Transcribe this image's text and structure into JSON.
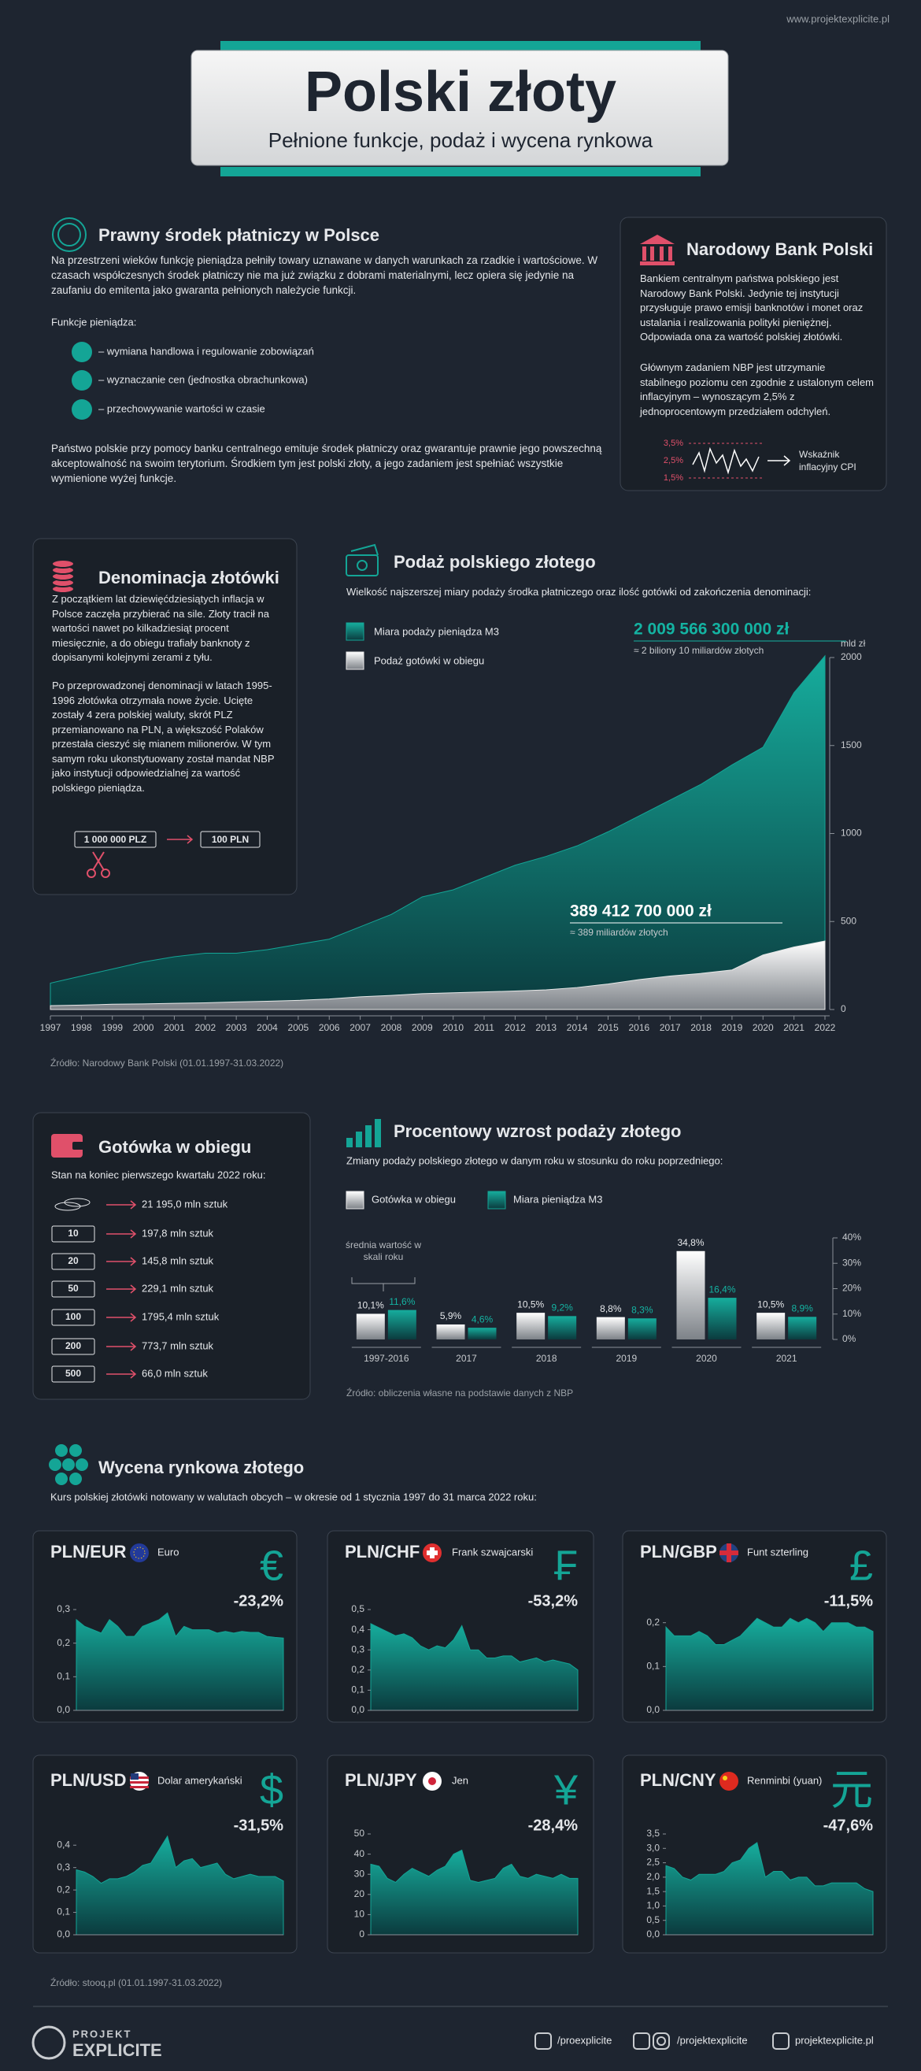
{
  "header": {
    "url": "www.projektexplicite.pl",
    "title": "Polski złoty",
    "subtitle": "Pełnione funkcje, podaż i wycena rynkowa"
  },
  "legal": {
    "title": "Prawny środek płatniczy w Polsce",
    "intro": "Na przestrzeni wieków funkcję pieniądza pełniły towary uznawane w danych warunkach za rzadkie i wartościowe. W czasach współczesnych środek płatniczy nie ma już związku z dobrami materialnymi, lecz opiera się jedynie na zaufaniu do emitenta jako gwaranta pełnionych należycie funkcji.",
    "functions_label": "Funkcje pieniądza:",
    "functions": [
      "– wymiana handlowa i regulowanie zobowiązań",
      "– wyznaczanie cen (jednostka obrachunkowa)",
      "– przechowywanie wartości w czasie"
    ],
    "outro": "Państwo polskie przy pomocy banku centralnego emituje środek płatniczy oraz gwarantuje prawnie jego powszechną akceptowalność na swoim terytorium. Środkiem tym jest polski złoty, a jego zadaniem jest spełniać wszystkie wymienione wyżej funkcje."
  },
  "nbp": {
    "title": "Narodowy Bank Polski",
    "p1": "Bankiem centralnym państwa polskiego jest Narodowy Bank Polski. Jedynie tej instytucji przysługuje prawo emisji banknotów i monet oraz ustalania i realizowania polityki pieniężnej. Odpowiada ona za wartość polskiej złotówki.",
    "p2": "Głównym zadaniem NBP jest utrzymanie stabilnego poziomu cen zgodnie z ustalonym celem inflacyjnym – wynoszącym 2,5% z jednoprocentowym przedziałem odchyleń.",
    "cpi_ticks": [
      "3,5%",
      "2,5%",
      "1,5%"
    ],
    "cpi_label": "Wskaźnik inflacyjny CPI"
  },
  "denomination": {
    "title": "Denominacja złotówki",
    "p1": "Z początkiem lat dziewięćdziesiątych inflacja w Polsce zaczęła przybierać na sile. Złoty tracił na wartości nawet po kilkadziesiąt procent miesięcznie, a do obiegu trafiały banknoty z dopisanymi kolejnymi zerami z tyłu.",
    "p2": "Po przeprowadzonej denominacji w latach 1995-1996 złotówka otrzymała nowe życie. Ucięte zostały 4 zera polskiej waluty, skrót PLZ przemianowano na PLN, a większość Polaków przestała cieszyć się mianem milionerów. W tym samym roku ukonstytuowany został mandat NBP jako instytucji odpowiedzialnej za wartość polskiego pieniądza.",
    "before": "1 000 000 PLZ",
    "after": "100 PLN"
  },
  "cash": {
    "title": "Gotówka w obiegu",
    "subtitle": "Stan na koniec pierwszego kwartału 2022 roku:",
    "items": [
      {
        "count": "21 195,0 mln sztuk"
      },
      {
        "denomination": "10",
        "count": "197,8 mln sztuk"
      },
      {
        "denomination": "20",
        "count": "145,8 mln sztuk"
      },
      {
        "denomination": "50",
        "count": "229,1 mln sztuk"
      },
      {
        "denomination": "100",
        "count": "1795,4 mln sztuk"
      },
      {
        "denomination": "200",
        "count": "773,7 mln sztuk"
      },
      {
        "denomination": "500",
        "count": "66,0 mln sztuk"
      }
    ]
  },
  "valuation": {
    "title": "Wycena rynkowa złotego",
    "subtitle": "Kurs polskiej złotówki notowany w walutach obcych – w okresie od 1 stycznia 1997 do 31 marca 2022 roku:",
    "source": "Źródło: stooq.pl (01.01.1997-31.03.2022)"
  },
  "footer": {
    "brand_top": "PROJEKT",
    "brand": "EXPLICITE",
    "twitter": "/proexplicite",
    "social": "/projektexplicite",
    "web": "projektexplicite.pl"
  },
  "chart_data": [
    {
      "type": "area",
      "title": "Podaż polskiego złotego",
      "subtitle": "Wielkość najszerszej miary podaży środka płatniczego oraz ilość gotówki od zakończenia denominacji:",
      "source": "Źródło: Narodowy Bank Polski (01.01.1997-31.03.2022)",
      "y_axis_label": "mld zł",
      "x": [
        1997,
        1998,
        1999,
        2000,
        2001,
        2002,
        2003,
        2004,
        2005,
        2006,
        2007,
        2008,
        2009,
        2010,
        2011,
        2012,
        2013,
        2014,
        2015,
        2016,
        2017,
        2018,
        2019,
        2020,
        2021,
        2022
      ],
      "series": [
        {
          "name": "Miara podaży pieniądza M3",
          "color": "#14a596",
          "values": [
            150,
            190,
            230,
            270,
            300,
            320,
            320,
            340,
            370,
            400,
            470,
            540,
            640,
            680,
            750,
            820,
            870,
            930,
            1010,
            1100,
            1190,
            1280,
            1390,
            1490,
            1800,
            2009.5663
          ]
        },
        {
          "name": "Podaż gotówki w obiegu",
          "color": "#e8e8e8",
          "values": [
            22,
            25,
            30,
            32,
            35,
            38,
            43,
            47,
            52,
            60,
            72,
            80,
            90,
            95,
            100,
            105,
            112,
            125,
            145,
            170,
            190,
            205,
            225,
            310,
            355,
            389.4127
          ]
        }
      ],
      "annotations": [
        {
          "label": "2 009 566 300 000 zł",
          "note": "≈ 2 biliony 10 miliardów złotych"
        },
        {
          "label": "389 412 700 000 zł",
          "note": "≈ 389 miliardów złotych"
        }
      ],
      "xlim": [
        1997,
        2022
      ],
      "xticks": [
        1997,
        1998,
        1999,
        2000,
        2001,
        2002,
        2003,
        2004,
        2005,
        2006,
        2007,
        2008,
        2009,
        2010,
        2011,
        2012,
        2013,
        2014,
        2015,
        2016,
        2017,
        2018,
        2019,
        2020,
        2021,
        2022
      ],
      "ylim": [
        0,
        2000
      ],
      "yticks": [
        0,
        500,
        1000,
        1500,
        2000
      ]
    },
    {
      "type": "bar",
      "title": "Procentowy wzrost podaży złotego",
      "subtitle": "Zmiany podaży polskiego złotego w danym roku w stosunku do roku poprzedniego:",
      "source": "Źródło: obliczenia własne na podstawie danych z NBP",
      "annotation": "średnia wartość w skali roku",
      "categories": [
        "1997-2016",
        "2017",
        "2018",
        "2019",
        "2020",
        "2021"
      ],
      "series": [
        {
          "name": "Gotówka w obiegu",
          "color": "#e8e8e8",
          "values": [
            10.1,
            5.9,
            10.5,
            8.8,
            34.8,
            10.5
          ],
          "value_labels": [
            "10,1%",
            "5,9%",
            "10,5%",
            "8,8%",
            "34,8%",
            "10,5%"
          ]
        },
        {
          "name": "Miara pieniądza M3",
          "color": "#14a596",
          "values": [
            11.6,
            4.6,
            9.2,
            8.3,
            16.4,
            8.9
          ],
          "value_labels": [
            "11,6%",
            "4,6%",
            "9,2%",
            "8,3%",
            "16,4%",
            "8,9%"
          ]
        }
      ],
      "ylim": [
        0,
        40
      ],
      "yticks": [
        {
          "value": 0,
          "label": "0%"
        },
        {
          "value": 10,
          "label": "10%"
        },
        {
          "value": 20,
          "label": "20%"
        },
        {
          "value": 30,
          "label": "30%"
        },
        {
          "value": 40,
          "label": "40%"
        }
      ]
    },
    {
      "type": "area",
      "title": "PLN/EUR",
      "currency": "Euro",
      "symbol": "€",
      "change": "-23,2%",
      "color": "#14a596",
      "values": [
        0.27,
        0.25,
        0.24,
        0.23,
        0.27,
        0.25,
        0.22,
        0.22,
        0.25,
        0.26,
        0.27,
        0.29,
        0.22,
        0.25,
        0.24,
        0.24,
        0.24,
        0.23,
        0.235,
        0.23,
        0.235,
        0.232,
        0.232,
        0.22,
        0.217,
        0.215
      ],
      "ylim": [
        0,
        0.3
      ],
      "yticks": [
        {
          "value": 0,
          "label": "0,0"
        },
        {
          "value": 0.1,
          "label": "0,1"
        },
        {
          "value": 0.2,
          "label": "0,2"
        },
        {
          "value": 0.3,
          "label": "0,3"
        }
      ]
    },
    {
      "type": "area",
      "title": "PLN/CHF",
      "currency": "Frank szwajcarski",
      "symbol": "₣",
      "change": "-53,2%",
      "color": "#14a596",
      "values": [
        0.43,
        0.41,
        0.39,
        0.37,
        0.38,
        0.36,
        0.32,
        0.3,
        0.32,
        0.31,
        0.35,
        0.42,
        0.3,
        0.3,
        0.26,
        0.26,
        0.27,
        0.27,
        0.24,
        0.25,
        0.26,
        0.24,
        0.25,
        0.24,
        0.23,
        0.2
      ],
      "ylim": [
        0,
        0.5
      ],
      "yticks": [
        {
          "value": 0,
          "label": "0,0"
        },
        {
          "value": 0.1,
          "label": "0,1"
        },
        {
          "value": 0.2,
          "label": "0,2"
        },
        {
          "value": 0.3,
          "label": "0,3"
        },
        {
          "value": 0.4,
          "label": "0,4"
        },
        {
          "value": 0.5,
          "label": "0,5"
        }
      ]
    },
    {
      "type": "area",
      "title": "PLN/GBP",
      "currency": "Funt szterling",
      "symbol": "£",
      "change": "-11,5%",
      "color": "#14a596",
      "values": [
        0.19,
        0.17,
        0.17,
        0.17,
        0.18,
        0.17,
        0.15,
        0.15,
        0.16,
        0.17,
        0.19,
        0.21,
        0.2,
        0.19,
        0.19,
        0.21,
        0.2,
        0.21,
        0.2,
        0.18,
        0.2,
        0.2,
        0.2,
        0.19,
        0.19,
        0.18
      ],
      "ylim": [
        0,
        0.23
      ],
      "yticks": [
        {
          "value": 0,
          "label": "0,0"
        },
        {
          "value": 0.1,
          "label": "0,1"
        },
        {
          "value": 0.2,
          "label": "0,2"
        }
      ]
    },
    {
      "type": "area",
      "title": "PLN/USD",
      "currency": "Dolar amerykański",
      "symbol": "$",
      "change": "-31,5%",
      "color": "#14a596",
      "values": [
        0.29,
        0.28,
        0.26,
        0.23,
        0.25,
        0.25,
        0.26,
        0.28,
        0.31,
        0.32,
        0.38,
        0.44,
        0.3,
        0.33,
        0.34,
        0.3,
        0.31,
        0.32,
        0.27,
        0.25,
        0.26,
        0.27,
        0.26,
        0.26,
        0.26,
        0.24
      ],
      "ylim": [
        0,
        0.45
      ],
      "yticks": [
        {
          "value": 0,
          "label": "0,0"
        },
        {
          "value": 0.1,
          "label": "0,1"
        },
        {
          "value": 0.2,
          "label": "0,2"
        },
        {
          "value": 0.3,
          "label": "0,3"
        },
        {
          "value": 0.4,
          "label": "0,4"
        }
      ]
    },
    {
      "type": "area",
      "title": "PLN/JPY",
      "currency": "Jen",
      "symbol": "¥",
      "change": "-28,4%",
      "color": "#14a596",
      "values": [
        35,
        34,
        28,
        26,
        30,
        33,
        31,
        29,
        32,
        34,
        40,
        42,
        27,
        26,
        27,
        28,
        33,
        35,
        29,
        28,
        30,
        29,
        28,
        30,
        28,
        28
      ],
      "ylim": [
        0,
        50
      ],
      "yticks": [
        0,
        10,
        20,
        30,
        40,
        50
      ]
    },
    {
      "type": "area",
      "title": "PLN/CNY",
      "currency": "Renminbi (yuan)",
      "symbol": "元",
      "change": "-47,6%",
      "color": "#14a596",
      "values": [
        2.4,
        2.3,
        2.0,
        1.9,
        2.1,
        2.1,
        2.1,
        2.2,
        2.5,
        2.6,
        3.0,
        3.2,
        2.0,
        2.2,
        2.2,
        1.9,
        2.0,
        2.0,
        1.7,
        1.7,
        1.8,
        1.8,
        1.8,
        1.8,
        1.6,
        1.5
      ],
      "ylim": [
        0,
        3.5
      ],
      "yticks": [
        {
          "value": 0,
          "label": "0,0"
        },
        {
          "value": 0.5,
          "label": "0,5"
        },
        {
          "value": 1,
          "label": "1,0"
        },
        {
          "value": 1.5,
          "label": "1,5"
        },
        {
          "value": 2,
          "label": "2,0"
        },
        {
          "value": 2.5,
          "label": "2,5"
        },
        {
          "value": 3,
          "label": "3,0"
        },
        {
          "value": 3.5,
          "label": "3,5"
        }
      ]
    }
  ]
}
